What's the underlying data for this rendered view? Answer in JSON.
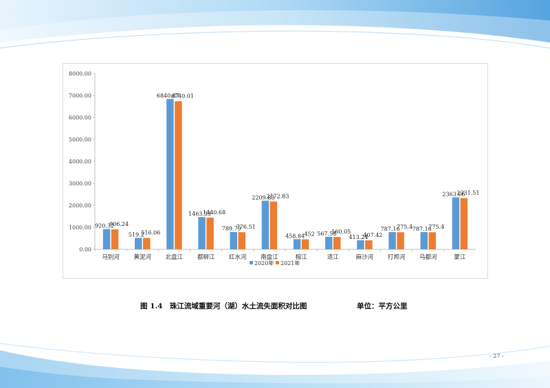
{
  "caption": {
    "title": "图 1.4　珠江流域重要河（湖）水土流失面积对比图",
    "unit": "单位：平方公里"
  },
  "page_number": "- 27 -",
  "colors": {
    "series_2020": "#5b9bd5",
    "series_2021": "#ed7d31",
    "bg_blue": "#8fc8ee"
  },
  "chart_data": {
    "type": "bar",
    "title": "",
    "xlabel": "",
    "ylabel": "",
    "ylim": [
      0,
      8000
    ],
    "yticks": [
      "0.00",
      "1000.00",
      "2000.00",
      "3000.00",
      "4000.00",
      "5000.00",
      "6000.00",
      "7000.00",
      "8000.00"
    ],
    "categories": [
      "马别河",
      "黄泥河",
      "北盘江",
      "都柳江",
      "红水河",
      "南盘江",
      "榕江",
      "涟江",
      "麻沙河",
      "打邦河",
      "乌都河",
      "蒙江"
    ],
    "series": [
      {
        "name": "2020年",
        "color": "#5b9bd5",
        "values": [
          920.32,
          519.2,
          6840.87,
          1463.33,
          789.79,
          2209.83,
          458.84,
          567.58,
          413.24,
          787.16,
          787.16,
          2363.06
        ],
        "labels": [
          "920.32",
          "519.2",
          "6840.87",
          "1463.33",
          "789.79",
          "2209.83",
          "458.84",
          "567.58",
          "413.24",
          "787.16",
          "787.16",
          "2363.06"
        ]
      },
      {
        "name": "2021年",
        "color": "#ed7d31",
        "values": [
          906.24,
          516.06,
          6740.01,
          1440.68,
          776.51,
          2172.83,
          452,
          560.05,
          407.42,
          775.4,
          775.4,
          2331.51
        ],
        "labels": [
          "906.24",
          "516.06",
          "6740.01",
          "1440.68",
          "776.51",
          "2172.83",
          "452",
          "560.05",
          "407.42",
          "775.4",
          "775.4",
          "2331.51"
        ]
      }
    ],
    "grid": false,
    "legend": "bottom"
  }
}
